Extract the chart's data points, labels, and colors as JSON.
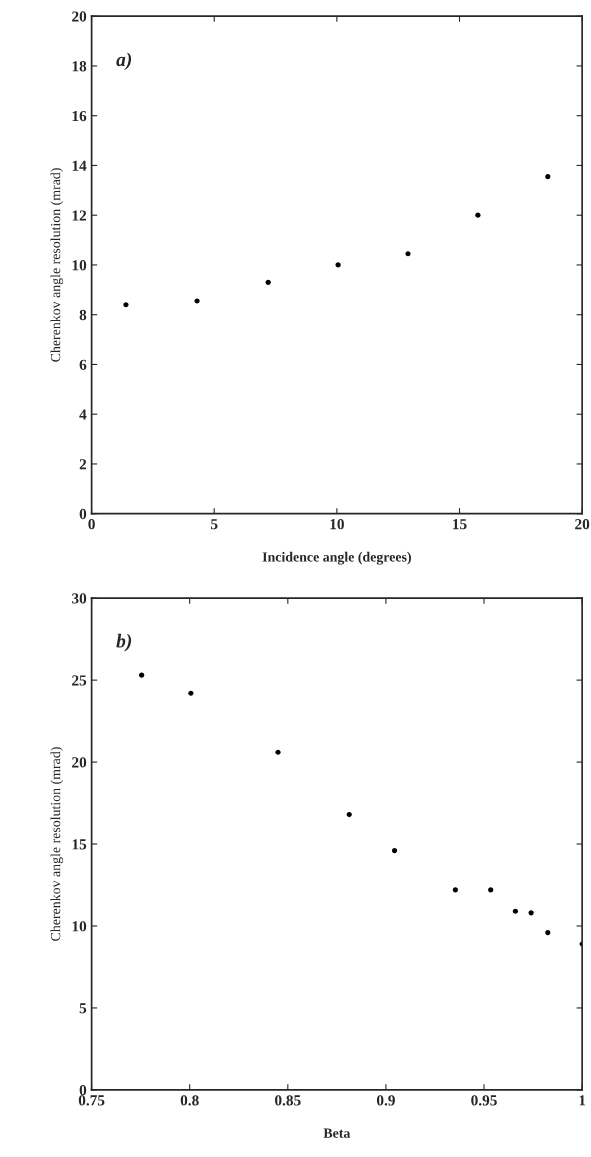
{
  "chart_data": [
    {
      "type": "scatter",
      "xlabel": "Incidence angle (degrees)",
      "ylabel": "Cherenkov angle resolution (mrad)",
      "x": [
        1.4,
        4.3,
        7.2,
        10.05,
        12.9,
        15.75,
        18.6
      ],
      "values": [
        8.4,
        8.55,
        9.3,
        10.0,
        10.45,
        12.0,
        13.55
      ],
      "color": "#000000",
      "marker": "circle",
      "xlim": [
        0,
        20
      ],
      "xticks": [
        0,
        5,
        10,
        15,
        20
      ],
      "ylim": [
        0,
        20
      ],
      "yticks": [
        0,
        2,
        4,
        6,
        8,
        10,
        12,
        14,
        16,
        18,
        20
      ],
      "annotations": [
        "a)"
      ]
    },
    {
      "type": "scatter",
      "xlabel": "Beta",
      "ylabel": "Cherenkov angle resolution (mrad)",
      "x": [
        0.7755,
        0.8006,
        0.845,
        0.8813,
        0.9044,
        0.9354,
        0.9534,
        0.966,
        0.974,
        0.9825,
        1.0
      ],
      "values": [
        25.3,
        24.2,
        20.6,
        16.8,
        14.6,
        12.2,
        12.2,
        10.9,
        10.8,
        9.6,
        8.9
      ],
      "color": "#000000",
      "marker": "circle",
      "xlim": [
        0.75,
        1
      ],
      "xticks": [
        0.75,
        0.8,
        0.85,
        0.9,
        0.95,
        1
      ],
      "ylim": [
        0,
        30
      ],
      "yticks": [
        0,
        5,
        10,
        15,
        20,
        25,
        30
      ],
      "annotations": [
        "b)"
      ]
    }
  ]
}
